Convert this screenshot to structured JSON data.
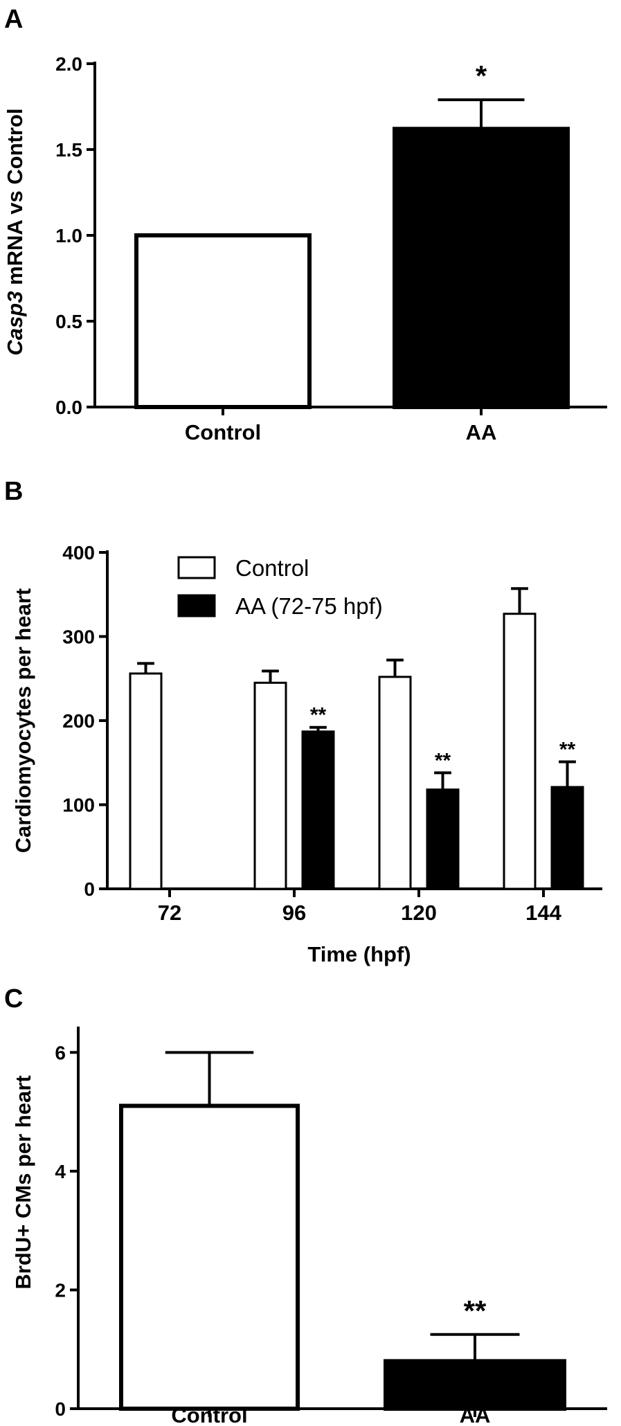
{
  "chart_data": [
    {
      "type": "bar",
      "panel": "A",
      "categories": [
        "Control",
        "AA"
      ],
      "values": [
        1.0,
        1.62
      ],
      "errors": [
        0,
        0.17
      ],
      "significance": [
        "",
        "*"
      ],
      "fills": [
        "#ffffff",
        "#000000"
      ],
      "ylabel_italic": "Casp3",
      "ylabel_rest": " mRNA vs Control",
      "ylim": [
        0,
        2.0
      ],
      "yticks": [
        "0.0",
        "0.5",
        "1.0",
        "1.5",
        "2.0"
      ],
      "ytick_values": [
        0,
        0.5,
        1.0,
        1.5,
        2.0
      ],
      "xlabel": ""
    },
    {
      "type": "bar",
      "panel": "B",
      "categories": [
        "72",
        "96",
        "120",
        "144"
      ],
      "series": [
        {
          "name": "Control",
          "color": "#ffffff",
          "values": [
            256,
            245,
            252,
            327
          ],
          "errors": [
            12,
            14,
            20,
            30
          ],
          "significance": [
            "",
            "",
            "",
            ""
          ]
        },
        {
          "name": "AA (72-75 hpf)",
          "color": "#000000",
          "values": [
            null,
            187,
            118,
            121
          ],
          "errors": [
            null,
            5,
            20,
            30
          ],
          "significance": [
            "",
            "**",
            "**",
            "**"
          ]
        }
      ],
      "ylabel": "Cardiomyocytes per heart",
      "xlabel": "Time (hpf)",
      "ylim": [
        0,
        400
      ],
      "yticks": [
        "0",
        "100",
        "200",
        "300",
        "400"
      ],
      "ytick_values": [
        0,
        100,
        200,
        300,
        400
      ],
      "legend_position": "top-left"
    },
    {
      "type": "bar",
      "panel": "C",
      "categories": [
        "Control",
        "AA"
      ],
      "values": [
        5.1,
        0.8
      ],
      "errors": [
        0.9,
        0.45
      ],
      "significance": [
        "",
        "**"
      ],
      "fills": [
        "#ffffff",
        "#000000"
      ],
      "ylabel": "BrdU+ CMs per heart",
      "xlabel": "",
      "ylim": [
        0,
        6.4
      ],
      "yticks": [
        "0",
        "2",
        "4",
        "6"
      ],
      "ytick_values": [
        0,
        2,
        4,
        6
      ]
    }
  ]
}
